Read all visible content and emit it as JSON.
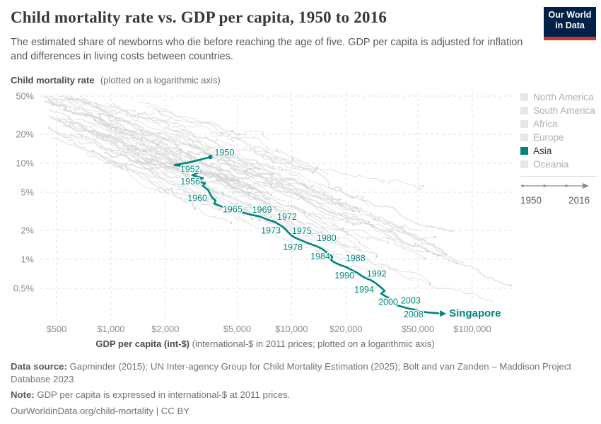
{
  "header": {
    "title": "Child mortality rate vs. GDP per capita, 1950 to 2016",
    "subtitle": "The estimated share of newborns who die before reaching the age of five. GDP per capita is adjusted for inflation and differences in living costs between countries.",
    "logo": {
      "line1": "Our World",
      "line2": "in Data"
    }
  },
  "axes": {
    "y_title_bold": "Child mortality rate",
    "y_title_rest": "(plotted on a logarithmic axis)",
    "x_title_bold": "GDP per capita (int-$)",
    "x_title_rest": "(international-$ in 2011 prices; plotted on a logarithmic axis)",
    "y_ticks": [
      {
        "label": "50%",
        "value": 50
      },
      {
        "label": "20%",
        "value": 20
      },
      {
        "label": "10%",
        "value": 10
      },
      {
        "label": "5%",
        "value": 5
      },
      {
        "label": "2%",
        "value": 2
      },
      {
        "label": "1%",
        "value": 1
      },
      {
        "label": "0.5%",
        "value": 0.5
      }
    ],
    "x_ticks": [
      {
        "label": "$500",
        "value": 500
      },
      {
        "label": "$1,000",
        "value": 1000
      },
      {
        "label": "$2,000",
        "value": 2000
      },
      {
        "label": "$5,000",
        "value": 5000
      },
      {
        "label": "$10,000",
        "value": 10000
      },
      {
        "label": "$20,000",
        "value": 20000
      },
      {
        "label": "$50,000",
        "value": 50000
      },
      {
        "label": "$100,000",
        "value": 100000
      }
    ]
  },
  "legend": {
    "items": [
      {
        "label": "North America",
        "active": false
      },
      {
        "label": "South America",
        "active": false
      },
      {
        "label": "Africa",
        "active": false
      },
      {
        "label": "Europe",
        "active": false
      },
      {
        "label": "Asia",
        "active": true
      },
      {
        "label": "Oceania",
        "active": false
      }
    ],
    "timeline": {
      "start": "1950",
      "end": "2016"
    }
  },
  "chart_data": {
    "type": "line",
    "title": "Child mortality rate vs. GDP per capita, 1950 to 2016",
    "xlabel": "GDP per capita (int-$)",
    "ylabel": "Child mortality rate",
    "x_scale": "log",
    "y_scale": "log",
    "x_range": [
      500,
      170000
    ],
    "y_range_pct": [
      0.24,
      54
    ],
    "grid": true,
    "accent_color": "#00847e",
    "background": "unlabeled light-gray 1950-2016 trajectories of all other countries",
    "series": [
      {
        "name": "Singapore",
        "color": "#00847e",
        "point_format": "[year, gdp_per_capita_int_dollar, child_mortality_pct]",
        "points": [
          [
            1950,
            3550,
            11.6
          ],
          [
            1951,
            2770,
            10.3
          ],
          [
            1952,
            2250,
            9.6
          ],
          [
            1953,
            2770,
            8.9
          ],
          [
            1954,
            3120,
            8.2
          ],
          [
            1955,
            2820,
            7.5
          ],
          [
            1956,
            3230,
            7.0
          ],
          [
            1957,
            2980,
            6.5
          ],
          [
            1958,
            3320,
            6.2
          ],
          [
            1959,
            3230,
            5.8
          ],
          [
            1960,
            3440,
            5.3
          ],
          [
            1961,
            3540,
            4.8
          ],
          [
            1962,
            3630,
            4.4
          ],
          [
            1963,
            3800,
            4.1
          ],
          [
            1964,
            3730,
            3.8
          ],
          [
            1965,
            4010,
            3.6
          ],
          [
            1966,
            4350,
            3.4
          ],
          [
            1967,
            4760,
            3.2
          ],
          [
            1968,
            5300,
            3.1
          ],
          [
            1969,
            6000,
            2.9
          ],
          [
            1970,
            6640,
            2.8
          ],
          [
            1971,
            7330,
            2.6
          ],
          [
            1972,
            8100,
            2.45
          ],
          [
            1973,
            8860,
            2.2
          ],
          [
            1974,
            9270,
            2.05
          ],
          [
            1975,
            9610,
            1.9
          ],
          [
            1976,
            10050,
            1.75
          ],
          [
            1977,
            10600,
            1.66
          ],
          [
            1978,
            11300,
            1.58
          ],
          [
            1979,
            12350,
            1.47
          ],
          [
            1980,
            13650,
            1.38
          ],
          [
            1981,
            14700,
            1.29
          ],
          [
            1982,
            15350,
            1.21
          ],
          [
            1983,
            16200,
            1.13
          ],
          [
            1984,
            16800,
            1.06
          ],
          [
            1985,
            16500,
            0.99
          ],
          [
            1986,
            17100,
            0.94
          ],
          [
            1987,
            18400,
            0.88
          ],
          [
            1988,
            20100,
            0.83
          ],
          [
            1989,
            21600,
            0.77
          ],
          [
            1990,
            23250,
            0.72
          ],
          [
            1991,
            24550,
            0.67
          ],
          [
            1992,
            25650,
            0.64
          ],
          [
            1993,
            27350,
            0.61
          ],
          [
            1994,
            29100,
            0.57
          ],
          [
            1995,
            30450,
            0.53
          ],
          [
            1996,
            31600,
            0.5
          ],
          [
            1997,
            32750,
            0.47
          ],
          [
            1998,
            31300,
            0.44
          ],
          [
            1999,
            33350,
            0.41
          ],
          [
            2000,
            35500,
            0.385
          ],
          [
            2001,
            34300,
            0.365
          ],
          [
            2002,
            35500,
            0.35
          ],
          [
            2003,
            36800,
            0.34
          ],
          [
            2004,
            39900,
            0.325
          ],
          [
            2005,
            42500,
            0.315
          ],
          [
            2006,
            45300,
            0.305
          ],
          [
            2007,
            48200,
            0.3
          ],
          [
            2008,
            49500,
            0.295
          ],
          [
            2009,
            48700,
            0.293
          ],
          [
            2010,
            52800,
            0.285
          ],
          [
            2012,
            56750,
            0.28
          ],
          [
            2014,
            60400,
            0.278
          ],
          [
            2016,
            65000,
            0.275
          ]
        ],
        "labeled_years": [
          "1950",
          "1952",
          "1956",
          "1960",
          "1965",
          "1969",
          "1972",
          "1973",
          "1975",
          "1978",
          "1980",
          "1984",
          "1988",
          "1990",
          "1992",
          "1994",
          "2000",
          "2003",
          "2008"
        ],
        "end_label": "Singapore"
      }
    ]
  },
  "footer": {
    "source_bold": "Data source:",
    "source_rest": " Gapminder (2015); UN Inter-agency Group for Child Mortality Estimation (2025); Bolt and van Zanden – Maddison Project Database 2023",
    "note_bold": "Note:",
    "note_rest": " GDP per capita is expressed in international-$ at 2011 prices.",
    "url": "OurWorldinData.org/child-mortality | CC BY"
  }
}
